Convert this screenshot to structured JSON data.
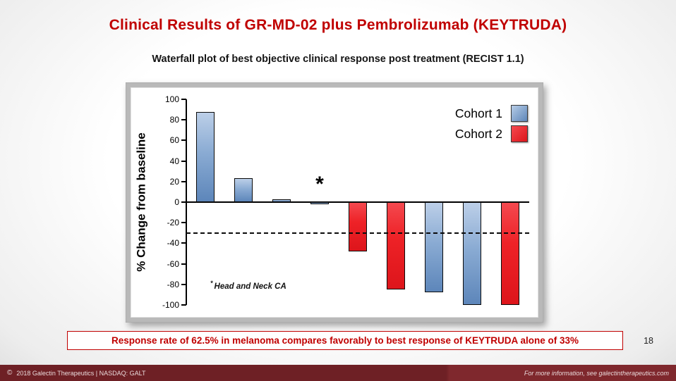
{
  "slide": {
    "title": "Clinical Results of GR-MD-02 plus Pembrolizumab (KEYTRUDA)",
    "subtitle": "Waterfall plot of best objective clinical response post treatment (RECIST 1.1)",
    "callout": "Response rate of 62.5% in melanoma compares favorably to best response of KEYTRUDA alone of 33%",
    "page_number": "18"
  },
  "footer": {
    "copyright_symbol": "©",
    "left_text": "2018 Galectin Therapeutics | NASDAQ: GALT",
    "right_text": "For more information, see galectintherapeutics.com"
  },
  "chart_data": {
    "type": "bar",
    "subtype": "waterfall",
    "title": "",
    "xlabel": "",
    "ylabel": "% Change from baseline",
    "ylim": [
      -100,
      100
    ],
    "yticks": [
      100,
      80,
      60,
      40,
      20,
      0,
      -20,
      -40,
      -60,
      -80,
      -100
    ],
    "grid": false,
    "legend_position": "top-right",
    "legend": [
      {
        "label": "Cohort 1",
        "color": "#6d92c3"
      },
      {
        "label": "Cohort 2",
        "color": "#ee2227"
      }
    ],
    "bars": [
      {
        "value": 88,
        "cohort": "Cohort 1"
      },
      {
        "value": 23,
        "cohort": "Cohort 1"
      },
      {
        "value": 3,
        "cohort": "Cohort 1"
      },
      {
        "value": -2,
        "cohort": "Cohort 1",
        "annotation": "*"
      },
      {
        "value": -48,
        "cohort": "Cohort 2"
      },
      {
        "value": -85,
        "cohort": "Cohort 2"
      },
      {
        "value": -88,
        "cohort": "Cohort 1"
      },
      {
        "value": -100,
        "cohort": "Cohort 1"
      },
      {
        "value": -100,
        "cohort": "Cohort 2"
      }
    ],
    "reference_line": -30,
    "footnote_mark": "*",
    "footnote_text": "Head and Neck CA"
  },
  "colors": {
    "title_red": "#c00000",
    "cohort1_blue": "#6d92c3",
    "cohort2_red": "#ee2227",
    "footer_maroon": "#6e2025"
  }
}
